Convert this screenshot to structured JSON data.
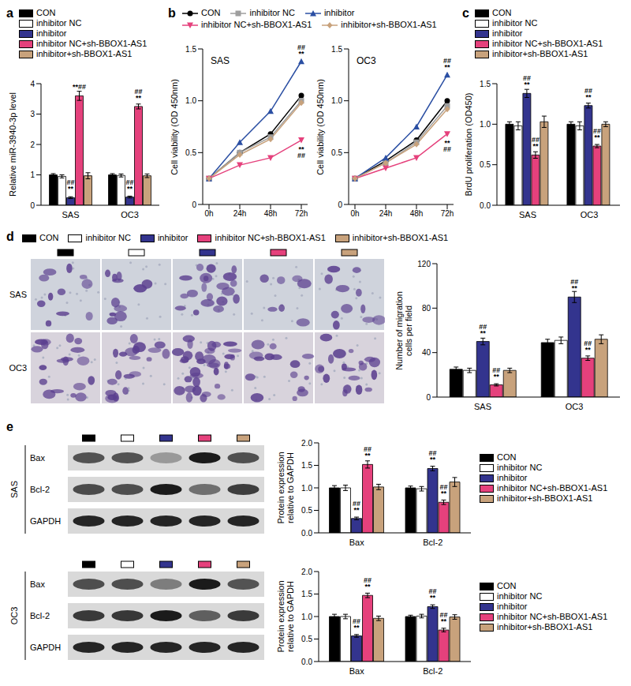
{
  "figure": {
    "images": {
      "panel": "d",
      "rows": [
        "SAS",
        "OC3"
      ]
    },
    "blots": {
      "panel": "e",
      "groups": [
        {
          "label": "SAS",
          "bands": [
            "Bax",
            "Bcl-2",
            "GAPDH"
          ]
        },
        {
          "label": "OC3",
          "bands": [
            "Bax",
            "Bcl-2",
            "GAPDH"
          ]
        }
      ]
    }
  },
  "chart_data": [
    {
      "panel": "a",
      "type": "bar",
      "ylabel": "Relative miR-3940-3p level",
      "categories": [
        "SAS",
        "OC3"
      ],
      "ylim": [
        0,
        4
      ],
      "yticks": [
        0,
        1,
        2,
        3,
        4
      ],
      "legend": "top",
      "series": [
        {
          "name": "CON",
          "color": "#000000",
          "values": [
            1,
            1
          ],
          "errors": [
            0.04,
            0.04
          ]
        },
        {
          "name": "inhibitor NC",
          "color": "#ffffff",
          "values": [
            0.95,
            0.98
          ],
          "errors": [
            0.05,
            0.05
          ]
        },
        {
          "name": "inhibitor",
          "color": "#33348e",
          "values": [
            0.25,
            0.27
          ],
          "errors": [
            0.03,
            0.03
          ],
          "annotations": [
            [
              "##",
              "**"
            ],
            [
              "##",
              "**"
            ]
          ]
        },
        {
          "name": "inhibitor NC+sh-BBOX1-AS1",
          "color": "#e5417c",
          "values": [
            3.6,
            3.25
          ],
          "errors": [
            0.15,
            0.08
          ],
          "annotations": [
            [
              "**##"
            ],
            [
              "##",
              "**"
            ]
          ]
        },
        {
          "name": "inhibitor+sh-BBOX1-AS1",
          "color": "#c8a27c",
          "values": [
            0.97,
            0.97
          ],
          "errors": [
            0.1,
            0.06
          ]
        }
      ]
    },
    {
      "panel": "b",
      "type": "line",
      "title": "SAS",
      "ylabel": "Cell viability (OD 450nm)",
      "x": [
        "0h",
        "24h",
        "48h",
        "72h"
      ],
      "ylim": [
        0,
        1.5
      ],
      "yticks": [
        0,
        0.5,
        {
          "value": 1,
          "label": "1.0"
        },
        1.5
      ],
      "legend": "top",
      "series": [
        {
          "name": "CON",
          "color": "#000000",
          "marker": "circle",
          "values": [
            0.25,
            0.5,
            0.68,
            1.05
          ]
        },
        {
          "name": "inhibitor NC",
          "color": "#9e9e9e",
          "marker": "square",
          "values": [
            0.25,
            0.5,
            0.65,
            1.0
          ]
        },
        {
          "name": "inhibitor",
          "color": "#2b4fa3",
          "marker": "triangle",
          "values": [
            0.25,
            0.6,
            0.9,
            1.38
          ],
          "annotations": [
            null,
            null,
            null,
            [
              "##",
              "**"
            ]
          ]
        },
        {
          "name": "inhibitor NC+sh-BBOX1-AS1",
          "color": "#e5417c",
          "marker": "triangle-down",
          "values": [
            0.25,
            0.38,
            0.45,
            0.62
          ],
          "annotations": [
            null,
            null,
            null,
            [
              "**",
              "##"
            ]
          ]
        },
        {
          "name": "inhibitor+sh-BBOX1-AS1",
          "color": "#c8a27c",
          "marker": "diamond",
          "values": [
            0.25,
            0.48,
            0.63,
            0.98
          ]
        }
      ]
    },
    {
      "type": "line",
      "title": "OC3",
      "ylabel": "Cell viability (OD 450nm)",
      "x": [
        "0h",
        "24h",
        "48h",
        "72h"
      ],
      "ylim": [
        0,
        1.5
      ],
      "yticks": [
        0,
        0.5,
        {
          "value": 1,
          "label": "1.0"
        },
        1.5
      ],
      "series": [
        {
          "name": "CON",
          "color": "#000000",
          "marker": "circle",
          "values": [
            0.25,
            0.42,
            0.62,
            1.0
          ]
        },
        {
          "name": "inhibitor NC",
          "color": "#9e9e9e",
          "marker": "square",
          "values": [
            0.25,
            0.4,
            0.6,
            0.95
          ]
        },
        {
          "name": "inhibitor",
          "color": "#2b4fa3",
          "marker": "triangle",
          "values": [
            0.25,
            0.45,
            0.75,
            1.25
          ],
          "annotations": [
            null,
            null,
            null,
            [
              "##",
              "**"
            ]
          ]
        },
        {
          "name": "inhibitor NC+sh-BBOX1-AS1",
          "color": "#e5417c",
          "marker": "triangle-down",
          "values": [
            0.25,
            0.35,
            0.45,
            0.68
          ],
          "annotations": [
            null,
            null,
            null,
            [
              "**",
              "##"
            ]
          ]
        },
        {
          "name": "inhibitor+sh-BBOX1-AS1",
          "color": "#c8a27c",
          "marker": "diamond",
          "values": [
            0.25,
            0.4,
            0.58,
            0.92
          ]
        }
      ]
    },
    {
      "panel": "c",
      "type": "bar",
      "ylabel": "BrdU proliferation (OD450)",
      "categories": [
        "SAS",
        "OC3"
      ],
      "ylim": [
        0,
        1.5
      ],
      "yticks": [
        {
          "value": 0,
          "label": "0.0"
        },
        0.5,
        {
          "value": 1,
          "label": "1.0"
        },
        1.5
      ],
      "legend": "top",
      "series": [
        {
          "name": "CON",
          "color": "#000000",
          "values": [
            1,
            1
          ],
          "errors": [
            0.03,
            0.03
          ]
        },
        {
          "name": "inhibitor NC",
          "color": "#ffffff",
          "values": [
            0.98,
            0.98
          ],
          "errors": [
            0.05,
            0.05
          ]
        },
        {
          "name": "inhibitor",
          "color": "#33348e",
          "values": [
            1.38,
            1.23
          ],
          "errors": [
            0.05,
            0.03
          ],
          "annotations": [
            [
              "##",
              "**"
            ],
            [
              "##",
              "**"
            ]
          ]
        },
        {
          "name": "inhibitor NC+sh-BBOX1-AS1",
          "color": "#e5417c",
          "values": [
            0.62,
            0.73
          ],
          "errors": [
            0.04,
            0.02
          ],
          "annotations": [
            [
              "##",
              "**"
            ],
            [
              "##",
              "**"
            ]
          ]
        },
        {
          "name": "inhibitor+sh-BBOX1-AS1",
          "color": "#c8a27c",
          "values": [
            1.03,
            1.0
          ],
          "errors": [
            0.07,
            0.03
          ]
        }
      ]
    },
    {
      "type": "bar",
      "ylabel": "Number of migration cells per field",
      "categories": [
        "SAS",
        "OC3"
      ],
      "ylim": [
        0,
        120
      ],
      "yticks": [
        0,
        40,
        80,
        120
      ],
      "legend": "top",
      "series": [
        {
          "name": "CON",
          "color": "#000000",
          "values": [
            25,
            49
          ],
          "errors": [
            2,
            3
          ]
        },
        {
          "name": "inhibitor NC",
          "color": "#ffffff",
          "values": [
            24,
            51
          ],
          "errors": [
            2,
            3
          ]
        },
        {
          "name": "inhibitor",
          "color": "#33348e",
          "values": [
            50,
            90
          ],
          "errors": [
            3,
            5
          ],
          "annotations": [
            [
              "##",
              "**"
            ],
            [
              "##",
              "**"
            ]
          ]
        },
        {
          "name": "inhibitor NC+sh-BBOX1-AS1",
          "color": "#e5417c",
          "values": [
            11,
            35
          ],
          "errors": [
            1,
            2
          ],
          "annotations": [
            [
              "##",
              "**"
            ],
            [
              "##",
              "**"
            ]
          ]
        },
        {
          "name": "inhibitor+sh-BBOX1-AS1",
          "color": "#c8a27c",
          "values": [
            24,
            52
          ],
          "errors": [
            2,
            4
          ]
        }
      ]
    },
    {
      "type": "bar",
      "ylabel": "Protein expression relative to GAPDH",
      "categories": [
        "Bax",
        "Bcl-2"
      ],
      "ylim": [
        0,
        2
      ],
      "yticks": [
        {
          "value": 0,
          "label": "0.0"
        },
        0.5,
        {
          "value": 1,
          "label": "1.0"
        },
        1.5,
        {
          "value": 2,
          "label": "2.0"
        }
      ],
      "legend": "right",
      "series": [
        {
          "name": "CON",
          "color": "#000000",
          "values": [
            1,
            1
          ],
          "errors": [
            0.05,
            0.04
          ]
        },
        {
          "name": "inhibitor NC",
          "color": "#ffffff",
          "values": [
            1,
            0.98
          ],
          "errors": [
            0.06,
            0.05
          ]
        },
        {
          "name": "inhibitor",
          "color": "#33348e",
          "values": [
            0.32,
            1.43
          ],
          "errors": [
            0.03,
            0.05
          ],
          "annotations": [
            [
              "##",
              "**"
            ],
            [
              "##",
              "**"
            ]
          ]
        },
        {
          "name": "inhibitor NC+sh-BBOX1-AS1",
          "color": "#e5417c",
          "values": [
            1.52,
            0.68
          ],
          "errors": [
            0.08,
            0.05
          ],
          "annotations": [
            [
              "##",
              "**"
            ],
            [
              "##",
              "**"
            ]
          ]
        },
        {
          "name": "inhibitor+sh-BBOX1-AS1",
          "color": "#c8a27c",
          "values": [
            1.02,
            1.13
          ],
          "errors": [
            0.06,
            0.1
          ]
        }
      ]
    },
    {
      "type": "bar",
      "ylabel": "Protein expression relative to GAPDH",
      "categories": [
        "Bax",
        "Bcl-2"
      ],
      "ylim": [
        0,
        2
      ],
      "yticks": [
        {
          "value": 0,
          "label": "0.0"
        },
        0.5,
        {
          "value": 1,
          "label": "1.0"
        },
        1.5,
        {
          "value": 2,
          "label": "2.0"
        }
      ],
      "legend": "right",
      "series": [
        {
          "name": "CON",
          "color": "#000000",
          "values": [
            1,
            1
          ],
          "errors": [
            0.05,
            0.03
          ]
        },
        {
          "name": "inhibitor NC",
          "color": "#ffffff",
          "values": [
            1,
            1.01
          ],
          "errors": [
            0.05,
            0.04
          ]
        },
        {
          "name": "inhibitor",
          "color": "#33348e",
          "values": [
            0.57,
            1.22
          ],
          "errors": [
            0.03,
            0.04
          ],
          "annotations": [
            [
              "##",
              "**"
            ],
            [
              "##",
              "**"
            ]
          ]
        },
        {
          "name": "inhibitor NC+sh-BBOX1-AS1",
          "color": "#e5417c",
          "values": [
            1.47,
            0.7
          ],
          "errors": [
            0.05,
            0.04
          ],
          "annotations": [
            [
              "##",
              "**"
            ],
            [
              "##",
              "**"
            ]
          ]
        },
        {
          "name": "inhibitor+sh-BBOX1-AS1",
          "color": "#c8a27c",
          "values": [
            0.96,
            0.99
          ],
          "errors": [
            0.05,
            0.05
          ]
        }
      ]
    }
  ]
}
